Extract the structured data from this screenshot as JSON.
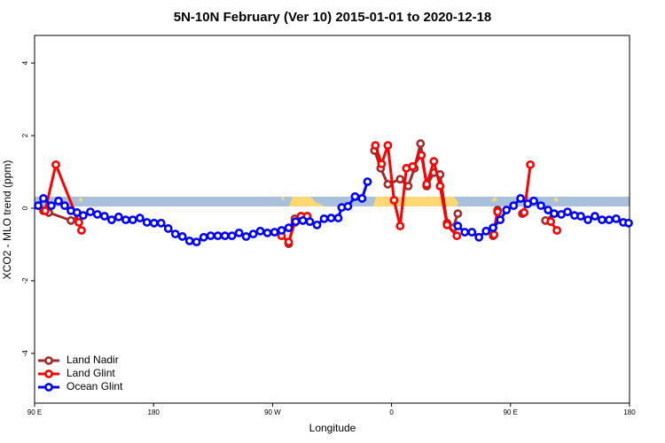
{
  "chart_data": {
    "type": "line",
    "title": "5N-10N February (Ver 10)   2015-01-01 to 2020-12-18",
    "x_label": "Longitude",
    "y_label": "XCO2 - MLO trend (ppm)",
    "xlim": [
      90,
      540
    ],
    "ylim": [
      -5.37,
      4.76
    ],
    "xticks": [
      {
        "value": 90,
        "label": "90 E"
      },
      180,
      {
        "value": 270,
        "label": "90 W"
      },
      {
        "value": 360,
        "label": "0"
      },
      {
        "value": 450,
        "label": "90 E"
      },
      {
        "value": 540,
        "label": "180"
      }
    ],
    "yticks": [
      -4,
      -2,
      0,
      2,
      4
    ],
    "legend": "bottom-left",
    "series": [
      {
        "name": "Land Nadir",
        "color": "#a52a2a",
        "x": [
          96.7,
          100.7,
          117.5,
          123.5,
          null,
          282.2,
          286.9,
          291.5,
          296.2,
          null,
          347.1,
          351.8,
          357.2,
          366.5,
          372.6,
          377.3,
          381.9,
          386.6,
          392.0,
          396.7,
          402.0,
          406.7,
          410.1,
          null,
          436.8,
          440.2,
          null,
          458.9,
          null,
          476.4,
          483.0
        ],
        "values": [
          -0.07,
          -0.12,
          -0.34,
          -0.22,
          null,
          -0.98,
          -0.29,
          -0.22,
          -0.22,
          null,
          1.59,
          1.1,
          0.66,
          0.8,
          0.61,
          1.1,
          1.78,
          0.61,
          0.98,
          0.93,
          -0.41,
          -0.54,
          -0.15,
          null,
          -0.76,
          -0.05,
          null,
          -0.15,
          null,
          -0.34,
          -0.15
        ]
      },
      {
        "name": "Land Glint",
        "color": "#ff0000",
        "x": [
          98.0,
          106.1,
          123.5,
          125.5,
          null,
          276.8,
          282.2,
          286.9,
          291.5,
          296.2,
          null,
          347.8,
          352.5,
          357.2,
          361.9,
          366.5,
          371.2,
          375.9,
          382.6,
          386.6,
          392.0,
          396.7,
          402.0,
          409.4,
          null,
          437.5,
          440.2,
          null,
          460.3,
          465.0,
          null,
          480.4,
          485.1
        ],
        "values": [
          -0.07,
          1.2,
          -0.39,
          -0.61,
          null,
          -0.76,
          -0.93,
          -0.39,
          -0.22,
          -0.22,
          null,
          1.73,
          1.22,
          1.73,
          0.22,
          -0.49,
          1.1,
          1.15,
          1.46,
          0.66,
          1.29,
          0.61,
          -0.46,
          -0.76,
          null,
          -0.73,
          -0.1,
          null,
          -0.12,
          1.2,
          null,
          -0.37,
          -0.61
        ]
      },
      {
        "name": "Ocean Glint",
        "color": "#0000ff",
        "x": [
          92.7,
          96.7,
          102.7,
          108.1,
          112.8,
          117.5,
          122.1,
          126.8,
          132.2,
          137.5,
          142.9,
          148.3,
          153.6,
          159.0,
          164.3,
          169.7,
          175.0,
          180.4,
          185.7,
          191.1,
          196.5,
          201.8,
          207.2,
          212.5,
          217.9,
          223.2,
          228.6,
          234.0,
          239.3,
          244.7,
          250.0,
          255.4,
          260.7,
          266.1,
          271.5,
          276.8,
          282.2,
          287.5,
          292.9,
          298.2,
          303.6,
          309.0,
          314.3,
          319.7,
          322.3,
          327.0,
          332.4,
          337.7,
          341.8,
          null,
          410.1,
          415.4,
          420.8,
          426.1,
          431.5,
          436.8,
          442.2,
          446.9,
          452.3,
          457.6,
          463.0,
          467.6,
          473.0,
          478.4,
          483.0,
          488.4,
          493.1,
          498.4,
          503.1,
          508.5,
          513.8,
          519.2,
          524.6,
          529.9,
          535.3,
          539.3
        ],
        "values": [
          0.07,
          0.27,
          0.07,
          0.2,
          0.07,
          -0.07,
          -0.12,
          -0.2,
          -0.1,
          -0.17,
          -0.22,
          -0.32,
          -0.24,
          -0.32,
          -0.32,
          -0.27,
          -0.39,
          -0.41,
          -0.41,
          -0.56,
          -0.71,
          -0.78,
          -0.9,
          -0.93,
          -0.8,
          -0.76,
          -0.76,
          -0.76,
          -0.76,
          -0.68,
          -0.78,
          -0.71,
          -0.63,
          -0.68,
          -0.66,
          -0.61,
          -0.54,
          -0.37,
          -0.34,
          -0.37,
          -0.46,
          -0.29,
          -0.27,
          -0.27,
          0.02,
          0.05,
          0.32,
          0.27,
          0.73,
          null,
          -0.49,
          -0.66,
          -0.66,
          -0.8,
          -0.63,
          -0.54,
          -0.32,
          -0.05,
          0.07,
          0.27,
          0.12,
          0.2,
          0.07,
          -0.05,
          -0.15,
          -0.17,
          -0.1,
          -0.2,
          -0.22,
          -0.32,
          -0.22,
          -0.32,
          -0.32,
          -0.29,
          -0.39,
          -0.41
        ]
      }
    ]
  }
}
